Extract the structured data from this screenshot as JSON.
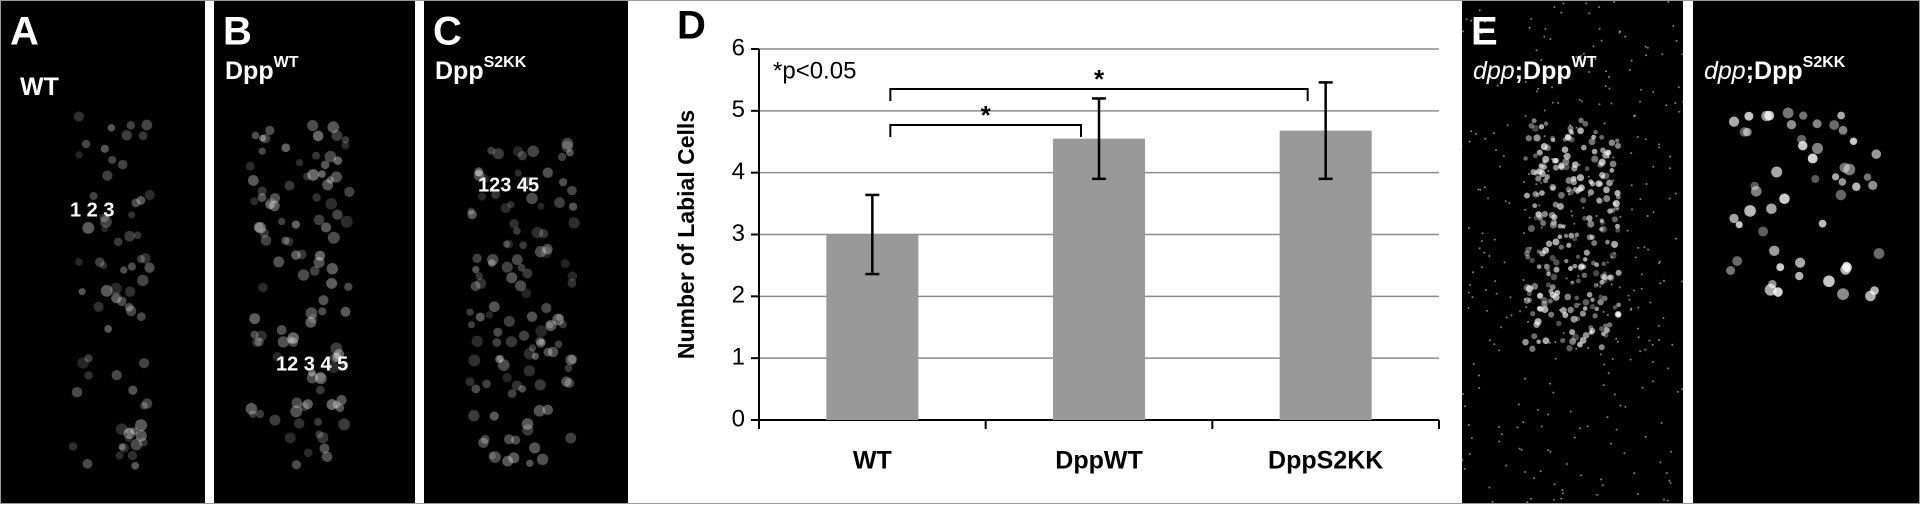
{
  "panels": [
    {
      "letter": "A",
      "label": "WT",
      "numbers": "1 2 3"
    },
    {
      "letter": "B",
      "label": "Dpp",
      "label_sup": "WT",
      "numbers": "12 3 4 5"
    },
    {
      "letter": "C",
      "label": "Dpp",
      "label_sup": "S2KK",
      "numbers": "123 45"
    },
    {
      "letter": "E",
      "label_italic": "dpp",
      "label": ";Dpp",
      "label_sup": "WT"
    },
    {
      "label_italic": "dpp",
      "label": ";Dpp",
      "label_sup": "S2KK"
    }
  ],
  "chart_data": {
    "type": "bar",
    "panel_label": "D",
    "ylabel": "Number of Labial Cells",
    "categories": [
      "WT",
      "DppWT",
      "DppS2KK"
    ],
    "values": [
      3.0,
      4.55,
      4.68
    ],
    "errors": [
      0.64,
      0.65,
      0.78
    ],
    "color": "#999999",
    "ylim": [
      0,
      6
    ],
    "yticks": [
      0,
      1,
      2,
      3,
      4,
      5,
      6
    ],
    "grid": true,
    "note": "*p<0.05",
    "significance": [
      "*",
      "*"
    ]
  }
}
